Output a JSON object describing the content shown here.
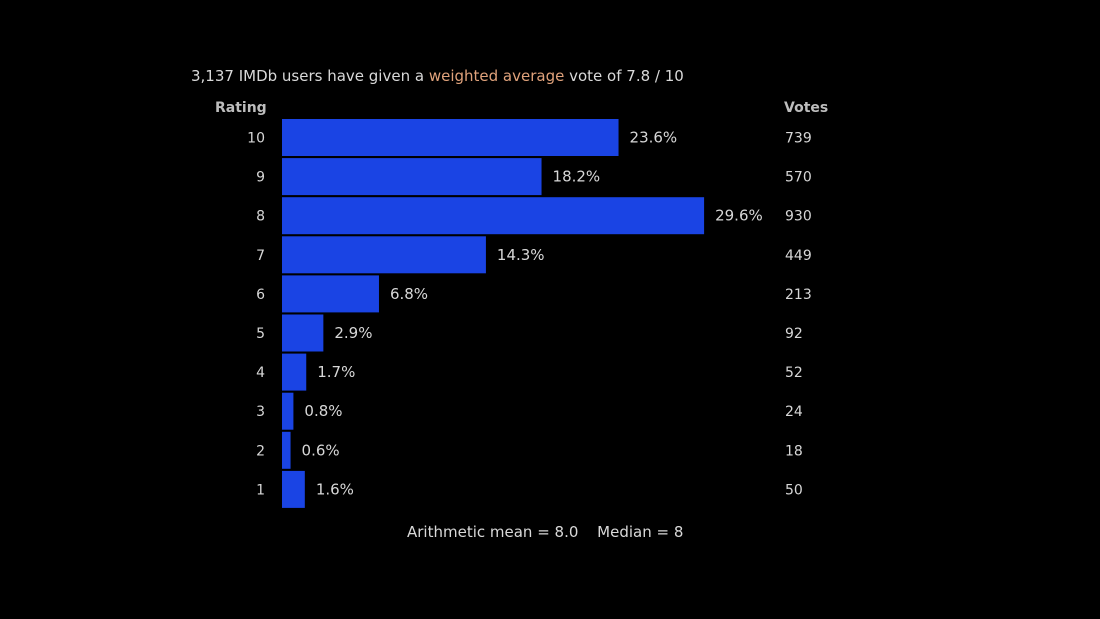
{
  "header": {
    "prefix": "3,137 IMDb users have given a",
    "link_text": "weighted average",
    "suffix": "vote of 7.8 / 10"
  },
  "columns": {
    "rating": "Rating",
    "votes": "Votes"
  },
  "summary": {
    "mean": "Arithmetic mean = 8.0",
    "median": "Median = 8"
  },
  "colors": {
    "bar": "#1a44e4",
    "text": "#d7d7d7",
    "link": "#e0a27b"
  },
  "chart_data": {
    "type": "bar",
    "orientation": "horizontal",
    "title": "3,137 IMDb users have given a weighted average vote of 7.8 / 10",
    "categories": [
      "10",
      "9",
      "8",
      "7",
      "6",
      "5",
      "4",
      "3",
      "2",
      "1"
    ],
    "values": [
      23.6,
      18.2,
      29.6,
      14.3,
      6.8,
      2.9,
      1.7,
      0.8,
      0.6,
      1.6
    ],
    "value_labels": [
      "23.6%",
      "18.2%",
      "29.6%",
      "14.3%",
      "6.8%",
      "2.9%",
      "1.7%",
      "0.8%",
      "0.6%",
      "1.6%"
    ],
    "votes": [
      "739",
      "570",
      "930",
      "449",
      "213",
      "92",
      "52",
      "24",
      "18",
      "50"
    ],
    "xlabel": "",
    "ylabel": "Rating",
    "grid": false,
    "legend": "none"
  }
}
